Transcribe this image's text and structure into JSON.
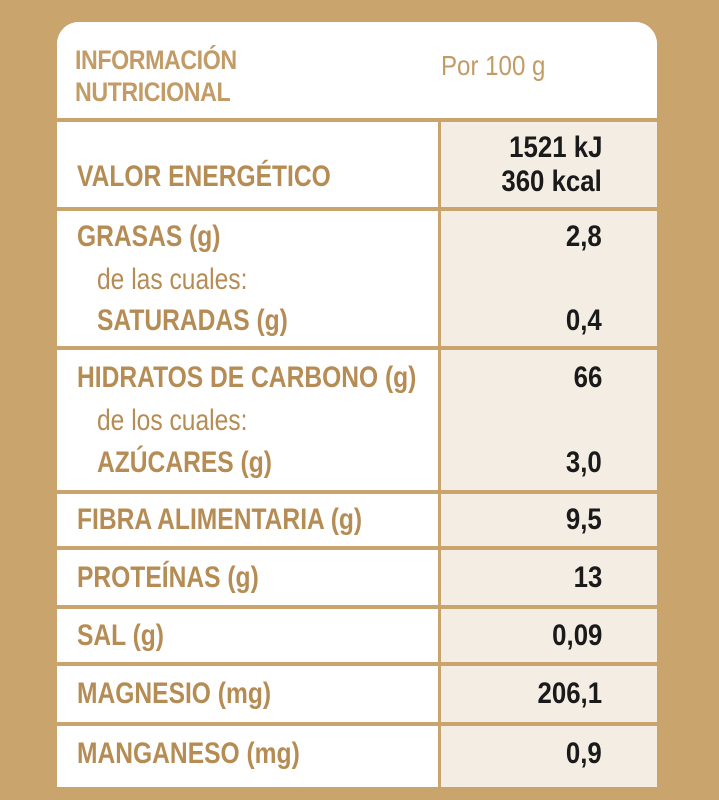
{
  "header": {
    "title_line1": "INFORMACIÓN",
    "title_line2": "NUTRICIONAL",
    "per": "Por 100 g"
  },
  "rows": {
    "energy": {
      "label": "VALOR ENERGÉTICO",
      "value_kj": "1521 kJ",
      "value_kcal": "360 kcal"
    },
    "fat": {
      "label": "GRASAS (g)",
      "value": "2,8",
      "sub_intro": "de las cuales:",
      "sub_label": "SATURADAS (g)",
      "sub_value": "0,4"
    },
    "carbs": {
      "label": "HIDRATOS DE CARBONO (g)",
      "value": "66",
      "sub_intro": "de los cuales:",
      "sub_label": "AZÚCARES (g)",
      "sub_value": "3,0"
    },
    "fiber": {
      "label": "FIBRA ALIMENTARIA (g)",
      "value": "9,5"
    },
    "protein": {
      "label": "PROTEÍNAS (g)",
      "value": "13"
    },
    "salt": {
      "label": "SAL (g)",
      "value": "0,09"
    },
    "magnesium": {
      "label": "MAGNESIO (mg)",
      "value": "206,1"
    },
    "manganese": {
      "label": "MANGANESO (mg)",
      "value": "0,9"
    }
  },
  "colors": {
    "background": "#c9a46c",
    "label_text": "#b68c55",
    "value_cell": "#f4ede4",
    "value_text": "#1a1a1a"
  }
}
